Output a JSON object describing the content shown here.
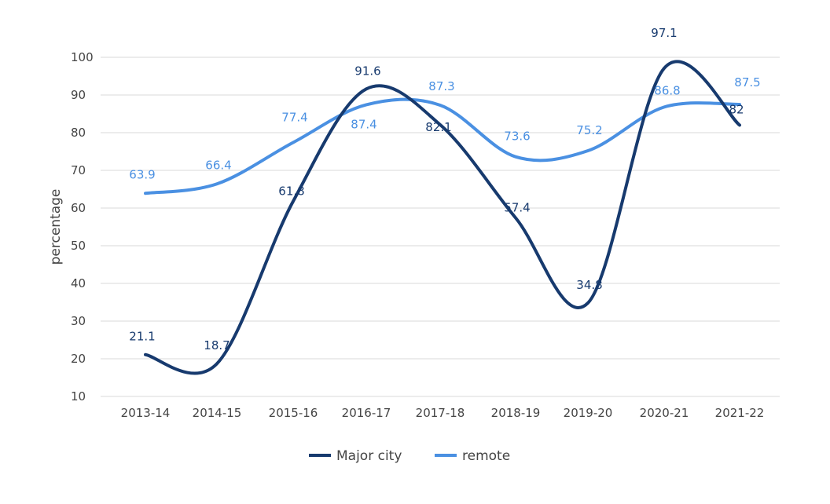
{
  "chart_data": {
    "type": "line",
    "title": "",
    "xlabel": "",
    "ylabel": "percentage",
    "ylim": [
      10,
      100
    ],
    "yticks": [
      10,
      20,
      30,
      40,
      50,
      60,
      70,
      80,
      90,
      100
    ],
    "grid": true,
    "legend_position": "bottom",
    "categories": [
      "2013-14",
      "2014-15",
      "2015-16",
      "2016-17",
      "2017-18",
      "2018-19",
      "2019-20",
      "2020-21",
      "2021-22"
    ],
    "series": [
      {
        "name": "Major city",
        "color": "#173a6e",
        "values": [
          21.1,
          18.7,
          61.8,
          91.6,
          82.1,
          57.4,
          34.8,
          97.1,
          82
        ]
      },
      {
        "name": "remote",
        "color": "#4a90e2",
        "values": [
          63.9,
          66.4,
          77.4,
          87.4,
          87.3,
          73.6,
          75.2,
          86.8,
          87.5
        ]
      }
    ]
  }
}
